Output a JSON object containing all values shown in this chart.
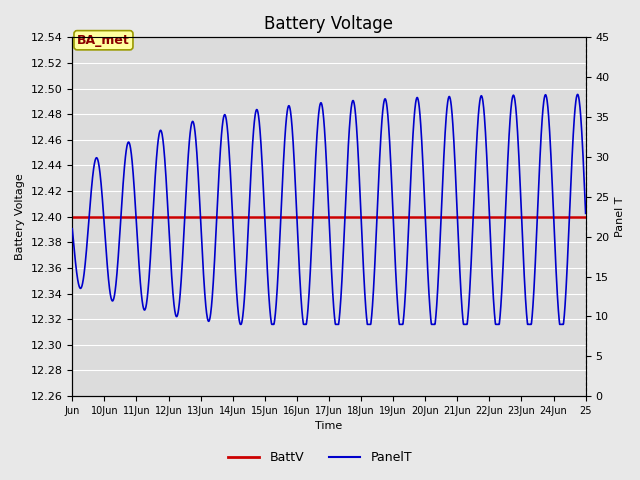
{
  "title": "Battery Voltage",
  "ylabel_left": "Battery Voltage",
  "ylabel_right": "Panel T",
  "xlabel": "Time",
  "ylim_left": [
    12.26,
    12.54
  ],
  "ylim_right": [
    0,
    45
  ],
  "xlim": [
    9,
    25
  ],
  "xtick_positions": [
    9,
    10,
    11,
    12,
    13,
    14,
    15,
    16,
    17,
    18,
    19,
    20,
    21,
    22,
    23,
    24,
    25
  ],
  "xtick_labels": [
    "Jun",
    "10Jun",
    "11Jun",
    "12Jun",
    "13Jun",
    "14Jun",
    "15Jun",
    "16Jun",
    "17Jun",
    "18Jun",
    "19Jun",
    "20Jun",
    "21Jun",
    "22Jun",
    "23Jun",
    "24Jun",
    "25"
  ],
  "ytick_left": [
    12.26,
    12.28,
    12.3,
    12.32,
    12.34,
    12.36,
    12.38,
    12.4,
    12.42,
    12.44,
    12.46,
    12.48,
    12.5,
    12.52,
    12.54
  ],
  "ytick_right": [
    0,
    5,
    10,
    15,
    20,
    25,
    30,
    35,
    40,
    45
  ],
  "batt_v": 12.4,
  "batt_color": "#cc0000",
  "panel_color": "#0000cc",
  "background_color": "#e8e8e8",
  "plot_bg_color": "#dcdcdc",
  "grid_color": "#ffffff",
  "annotation_text": "BA_met",
  "annotation_bg": "#ffffa0",
  "annotation_border": "#999900",
  "annotation_text_color": "#8b0000",
  "legend_fontsize": 9,
  "title_fontsize": 12,
  "axis_fontsize": 8,
  "xtick_fontsize": 7
}
